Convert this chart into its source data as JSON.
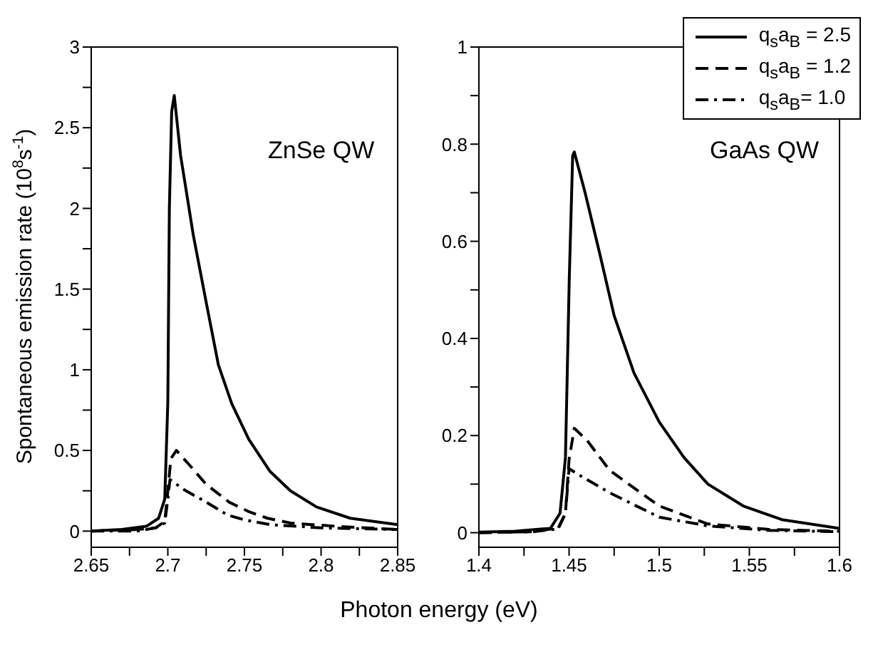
{
  "chart_data": [
    {
      "type": "line",
      "xlabel": "Photon energy (eV)",
      "ylabel": "Spontaneous emission rate (10$^{8}$s$^{-1}$)",
      "annotations": [
        "ZnSe QW"
      ],
      "xlim": [
        2.65,
        2.85
      ],
      "ylim": [
        -0.1,
        3
      ],
      "xticks": [
        2.65,
        {
          "value": 2.675,
          "label": null
        },
        2.7,
        {
          "value": 2.725,
          "label": null
        },
        2.75,
        {
          "value": 2.775,
          "label": null
        },
        2.8,
        {
          "value": 2.825,
          "label": null
        },
        2.85
      ],
      "yticks": [
        0,
        {
          "value": 0.25,
          "label": null
        },
        0.5,
        {
          "value": 0.75,
          "label": null
        },
        1,
        {
          "value": 1.25,
          "label": null
        },
        1.5,
        {
          "value": 1.75,
          "label": null
        },
        2,
        {
          "value": 2.25,
          "label": null
        },
        2.5,
        {
          "value": 2.75,
          "label": null
        },
        3
      ],
      "legend": false,
      "marker": "none",
      "series": [
        {
          "color": "#000000",
          "line_style": "solid",
          "x": [
            2.65,
            2.67,
            2.686,
            2.694,
            2.698,
            2.7,
            2.701,
            2.7025,
            2.7042,
            2.7083,
            2.7167,
            2.725,
            2.733,
            2.7417,
            2.7528,
            2.7667,
            2.78,
            2.797,
            2.819,
            2.85
          ],
          "values": [
            0.0,
            0.01,
            0.03,
            0.08,
            0.2,
            0.8,
            2.0,
            2.6,
            2.7,
            2.33,
            1.83,
            1.42,
            1.03,
            0.79,
            0.57,
            0.37,
            0.25,
            0.15,
            0.08,
            0.04
          ]
        },
        {
          "color": "#000000",
          "line_style": "dashed",
          "x": [
            2.65,
            2.68,
            2.692,
            2.698,
            2.7,
            2.702,
            2.7056,
            2.715,
            2.725,
            2.74,
            2.753,
            2.765,
            2.78,
            2.81,
            2.85
          ],
          "values": [
            0.0,
            0.01,
            0.02,
            0.06,
            0.25,
            0.45,
            0.5,
            0.4,
            0.29,
            0.18,
            0.12,
            0.08,
            0.05,
            0.03,
            0.01
          ]
        },
        {
          "color": "#000000",
          "line_style": "dashdot",
          "x": [
            2.65,
            2.68,
            2.692,
            2.698,
            2.7,
            2.7014,
            2.71,
            2.725,
            2.739,
            2.75,
            2.767,
            2.8,
            2.85
          ],
          "values": [
            0.0,
            0.0,
            0.02,
            0.05,
            0.2,
            0.32,
            0.26,
            0.18,
            0.1,
            0.07,
            0.04,
            0.02,
            0.01
          ]
        }
      ]
    },
    {
      "type": "line",
      "annotations": [
        "GaAs QW"
      ],
      "xlim": [
        1.4,
        1.6
      ],
      "ylim": [
        -0.03,
        1
      ],
      "xticks": [
        1.4,
        {
          "value": 1.425,
          "label": null
        },
        1.45,
        {
          "value": 1.475,
          "label": null
        },
        1.5,
        {
          "value": 1.525,
          "label": null
        },
        1.55,
        {
          "value": 1.575,
          "label": null
        },
        1.6
      ],
      "yticks": [
        0,
        {
          "value": 0.1,
          "label": null
        },
        0.2,
        {
          "value": 0.3,
          "label": null
        },
        0.4,
        {
          "value": 0.5,
          "label": null
        },
        0.6,
        {
          "value": 0.7,
          "label": null
        },
        0.8,
        {
          "value": 0.9,
          "label": null
        },
        1
      ],
      "legend": "top right",
      "marker": "none",
      "series": [
        {
          "name": "q$_{s}$a$_{B}$ = 2.5",
          "color": "#000000",
          "line_style": "solid",
          "x": [
            1.4,
            1.42,
            1.4397,
            1.445,
            1.448,
            1.4501,
            1.452,
            1.4529,
            1.4589,
            1.467,
            1.475,
            1.486,
            1.5,
            1.5137,
            1.527,
            1.5466,
            1.568,
            1.6
          ],
          "values": [
            0.001,
            0.003,
            0.009,
            0.04,
            0.155,
            0.52,
            0.776,
            0.784,
            0.7,
            0.575,
            0.447,
            0.329,
            0.228,
            0.155,
            0.1,
            0.055,
            0.027,
            0.009
          ]
        },
        {
          "name": "q$_{s}$a$_{B}$ = 1.2",
          "color": "#000000",
          "line_style": "dashed",
          "x": [
            1.4,
            1.43,
            1.444,
            1.448,
            1.45,
            1.4529,
            1.46,
            1.4726,
            1.5,
            1.527,
            1.56,
            1.6
          ],
          "values": [
            0.0,
            0.002,
            0.01,
            0.04,
            0.15,
            0.215,
            0.19,
            0.128,
            0.055,
            0.018,
            0.007,
            0.003
          ]
        },
        {
          "name": "q$_{s}$a$_{B}$= 1.0",
          "color": "#000000",
          "line_style": "dashdot",
          "x": [
            1.4,
            1.43,
            1.444,
            1.448,
            1.45,
            1.455,
            1.4726,
            1.5,
            1.527,
            1.56,
            1.6
          ],
          "values": [
            0.0,
            0.002,
            0.008,
            0.04,
            0.132,
            0.12,
            0.082,
            0.032,
            0.014,
            0.005,
            0.002
          ]
        }
      ]
    }
  ]
}
